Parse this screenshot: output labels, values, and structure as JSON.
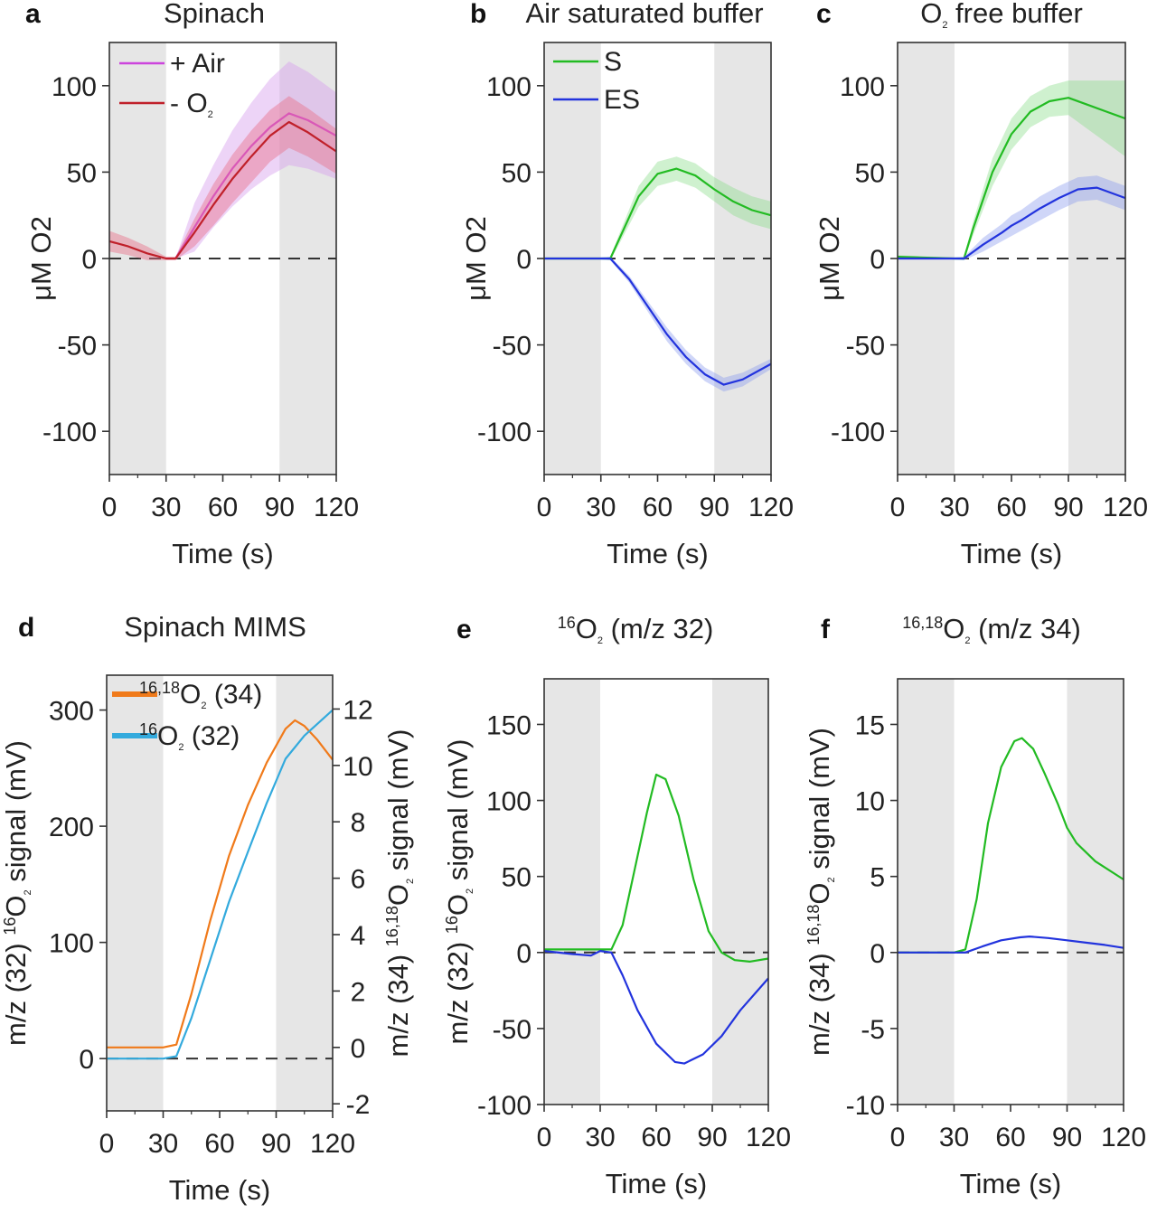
{
  "chart_data": [
    {
      "panel": "a",
      "title": "Spinach",
      "type": "line",
      "xlabel": "Time (s)",
      "xlim": [
        0,
        120
      ],
      "ylim": [
        -125,
        125
      ],
      "xticks": [
        "0",
        "30",
        "60",
        "90",
        "120"
      ],
      "yticks": [
        "-100",
        "-50",
        "0",
        "50",
        "100"
      ],
      "ylabel": "μM O2",
      "shaded_regions": [
        [
          0,
          30
        ],
        [
          90,
          120
        ]
      ],
      "zero_line": true,
      "legend": [
        {
          "label_pre": "+ Air",
          "sup": "",
          "label_main": "",
          "sub": "",
          "label_post": "",
          "color": "#cc44dd"
        },
        {
          "label_pre": "- O",
          "sup": "",
          "label_main": "",
          "sub": "2",
          "label_post": "",
          "color": "#c0202a"
        }
      ],
      "series": [
        {
          "name": "+ Air",
          "color": "#cc44dd",
          "band_color": "#d8a0ee",
          "band_opacity": 0.45,
          "x": [
            0,
            30,
            35,
            45,
            55,
            65,
            75,
            85,
            95,
            105,
            120
          ],
          "y": [
            null,
            0,
            0,
            18,
            36,
            52,
            65,
            76,
            84,
            80,
            71
          ],
          "err": [
            0,
            0,
            0,
            14,
            18,
            22,
            25,
            28,
            30,
            28,
            25
          ]
        },
        {
          "name": "- O2",
          "color": "#c0202a",
          "band_color": "#e8708a",
          "band_opacity": 0.45,
          "x": [
            0,
            10,
            20,
            30,
            35,
            45,
            55,
            65,
            75,
            85,
            95,
            105,
            120
          ],
          "y": [
            10,
            7,
            3,
            0,
            0,
            15,
            31,
            46,
            59,
            71,
            79,
            73,
            62
          ],
          "err": [
            6,
            5,
            4,
            1,
            1,
            8,
            12,
            14,
            15,
            15,
            15,
            14,
            13
          ]
        }
      ]
    },
    {
      "panel": "b",
      "title": "Air saturated buffer",
      "type": "line",
      "xlabel": "Time (s)",
      "xlim": [
        0,
        120
      ],
      "ylim": [
        -125,
        125
      ],
      "xticks": [
        "0",
        "30",
        "60",
        "90",
        "120"
      ],
      "yticks": [
        "-100",
        "-50",
        "0",
        "50",
        "100"
      ],
      "ylabel": "μM O2",
      "shaded_regions": [
        [
          0,
          30
        ],
        [
          90,
          120
        ]
      ],
      "zero_line": true,
      "legend": [
        {
          "label_pre": "S",
          "sup": "",
          "label_main": "",
          "sub": "",
          "label_post": "",
          "color": "#22bb22"
        },
        {
          "label_pre": "ES",
          "sup": "",
          "label_main": "",
          "sub": "",
          "label_post": "",
          "color": "#2233dd"
        }
      ],
      "series": [
        {
          "name": "S",
          "color": "#22bb22",
          "band_color": "#88dd88",
          "band_opacity": 0.4,
          "x": [
            0,
            30,
            35,
            40,
            50,
            60,
            70,
            80,
            90,
            100,
            110,
            120
          ],
          "y": [
            0,
            0,
            0,
            12,
            36,
            49,
            52,
            48,
            40,
            33,
            28,
            25
          ],
          "err": [
            0.5,
            0.5,
            1,
            3,
            6,
            7,
            7,
            7,
            7,
            8,
            8,
            8
          ]
        },
        {
          "name": "ES",
          "color": "#2233dd",
          "band_color": "#8899ee",
          "band_opacity": 0.4,
          "x": [
            0,
            30,
            35,
            45,
            55,
            65,
            75,
            85,
            95,
            105,
            120
          ],
          "y": [
            0,
            0,
            0,
            -12,
            -28,
            -44,
            -57,
            -67,
            -73,
            -70,
            -61
          ],
          "err": [
            0.5,
            0.5,
            1,
            2,
            3,
            4,
            4,
            4,
            4,
            4,
            3
          ]
        }
      ]
    },
    {
      "panel": "c",
      "title": "O2 free buffer",
      "type": "line",
      "xlabel": "Time (s)",
      "xlim": [
        0,
        120
      ],
      "ylim": [
        -125,
        125
      ],
      "xticks": [
        "0",
        "30",
        "60",
        "90",
        "120"
      ],
      "yticks": [
        "-100",
        "-50",
        "0",
        "50",
        "100"
      ],
      "ylabel": "μM O2",
      "shaded_regions": [
        [
          0,
          30
        ],
        [
          90,
          120
        ]
      ],
      "zero_line": true,
      "legend": [],
      "series": [
        {
          "name": "S",
          "color": "#22bb22",
          "band_color": "#88dd88",
          "band_opacity": 0.4,
          "x": [
            0,
            30,
            35,
            40,
            50,
            60,
            70,
            80,
            90,
            100,
            110,
            120
          ],
          "y": [
            1,
            0,
            0,
            18,
            50,
            72,
            85,
            91,
            93,
            89,
            85,
            81
          ],
          "err": [
            1,
            0.5,
            1,
            4,
            8,
            9,
            9,
            9,
            10,
            14,
            18,
            22
          ]
        },
        {
          "name": "ES",
          "color": "#2233dd",
          "band_color": "#8899ee",
          "band_opacity": 0.4,
          "x": [
            0,
            30,
            35,
            45,
            55,
            60,
            65,
            75,
            85,
            95,
            105,
            120
          ],
          "y": [
            0,
            0,
            0,
            8,
            15,
            19,
            22,
            29,
            35,
            40,
            41,
            35
          ],
          "err": [
            0.5,
            0.5,
            1,
            4,
            5,
            6,
            6,
            7,
            7,
            7,
            7,
            7
          ]
        }
      ]
    },
    {
      "panel": "d",
      "title": "Spinach MIMS",
      "type": "line",
      "xlabel": "Time (s)",
      "xlim": [
        0,
        120
      ],
      "ylim": [
        -45,
        330
      ],
      "xticks": [
        "0",
        "30",
        "60",
        "90",
        "120"
      ],
      "yticks": [
        "0",
        "100",
        "200",
        "300"
      ],
      "ylabel_pre": "m/z (32) ",
      "ylabel_sup": "16",
      "ylabel_main": "O",
      "ylabel_sub": "2",
      "ylabel_post": " signal (mV)",
      "y2lim": [
        -2.25,
        13.2
      ],
      "y2ticks": [
        "-2",
        "0",
        "2",
        "4",
        "6",
        "8",
        "10",
        "12"
      ],
      "y2label_pre": "m/z (34) ",
      "y2label_sup": "16,18",
      "y2label_main": "O",
      "y2label_sub": "2",
      "y2label_post": " signal (mV)",
      "shaded_regions": [
        [
          0,
          30
        ],
        [
          90,
          120
        ]
      ],
      "zero_line": true,
      "legend": [
        {
          "label_pre": "",
          "sup": "16,18",
          "label_main": "O",
          "sub": "2",
          "label_post": " (34)",
          "color": "#f07a1a"
        },
        {
          "label_pre": "",
          "sup": "16",
          "label_main": "O",
          "sub": "2",
          "label_post": " (32)",
          "color": "#33aadd"
        }
      ],
      "series": [
        {
          "name": "16,18O2 (34)",
          "color": "#f07a1a",
          "axis": "right",
          "x": [
            0,
            30,
            37,
            45,
            55,
            65,
            75,
            85,
            95,
            100,
            105,
            112,
            120
          ],
          "y": [
            0,
            0,
            0.1,
            1.9,
            4.5,
            6.8,
            8.6,
            10.1,
            11.3,
            11.6,
            11.4,
            10.9,
            10.2
          ]
        },
        {
          "name": "16O2 (32)",
          "color": "#33aadd",
          "axis": "left",
          "x": [
            0,
            30,
            37,
            45,
            55,
            65,
            75,
            85,
            95,
            105,
            120
          ],
          "y": [
            0,
            0,
            2,
            35,
            85,
            135,
            178,
            220,
            258,
            278,
            300
          ]
        }
      ]
    },
    {
      "panel": "e",
      "title_sup": "16",
      "title_main": "O",
      "title_sub": "2",
      "title_post": " (m/z 32)",
      "type": "line",
      "xlabel": "Time (s)",
      "xlim": [
        0,
        120
      ],
      "ylim": [
        -100,
        180
      ],
      "xticks": [
        "0",
        "30",
        "60",
        "90",
        "120"
      ],
      "yticks": [
        "-100",
        "-50",
        "0",
        "50",
        "100",
        "150"
      ],
      "ylabel_pre": "m/z (32) ",
      "ylabel_sup": "16",
      "ylabel_main": "O",
      "ylabel_sub": "2",
      "ylabel_post": " signal (mV)",
      "shaded_regions": [
        [
          0,
          30
        ],
        [
          90,
          120
        ]
      ],
      "zero_line": true,
      "legend": [],
      "series": [
        {
          "name": "S",
          "color": "#22bb22",
          "x": [
            0,
            30,
            36,
            42,
            48,
            55,
            60,
            65,
            72,
            80,
            88,
            95,
            102,
            110,
            120
          ],
          "y": [
            2,
            2,
            2,
            18,
            52,
            92,
            117,
            114,
            90,
            48,
            14,
            0,
            -5,
            -6,
            -4
          ]
        },
        {
          "name": "ES",
          "color": "#2233dd",
          "x": [
            0,
            15,
            25,
            30,
            36,
            42,
            50,
            60,
            70,
            75,
            85,
            95,
            105,
            120
          ],
          "y": [
            1,
            -1,
            -2,
            1,
            0,
            -15,
            -38,
            -60,
            -72,
            -73,
            -67,
            -55,
            -38,
            -17
          ]
        }
      ]
    },
    {
      "panel": "f",
      "title_sup": "16,18",
      "title_main": "O",
      "title_sub": "2",
      "title_post": " (m/z 34)",
      "type": "line",
      "xlabel": "Time (s)",
      "xlim": [
        0,
        120
      ],
      "ylim": [
        -10,
        18
      ],
      "xticks": [
        "0",
        "30",
        "60",
        "90",
        "120"
      ],
      "yticks": [
        "-10",
        "-5",
        "0",
        "5",
        "10",
        "15"
      ],
      "ylabel_pre": "m/z (34) ",
      "ylabel_sup": "16,18",
      "ylabel_main": "O",
      "ylabel_sub": "2",
      "ylabel_post": " signal (mV)",
      "shaded_regions": [
        [
          0,
          30
        ],
        [
          90,
          120
        ]
      ],
      "zero_line": true,
      "legend": [],
      "series": [
        {
          "name": "S",
          "color": "#22bb22",
          "x": [
            0,
            30,
            36,
            42,
            48,
            55,
            62,
            66,
            72,
            78,
            85,
            90,
            95,
            105,
            120
          ],
          "y": [
            0,
            0,
            0.2,
            3.5,
            8.5,
            12.2,
            13.9,
            14.1,
            13.4,
            11.8,
            9.8,
            8.2,
            7.2,
            6,
            4.8
          ]
        },
        {
          "name": "ES",
          "color": "#2233dd",
          "x": [
            0,
            30,
            36,
            45,
            55,
            65,
            70,
            80,
            90,
            100,
            110,
            120
          ],
          "y": [
            0,
            0,
            0,
            0.4,
            0.8,
            1,
            1.05,
            0.95,
            0.8,
            0.65,
            0.5,
            0.3
          ]
        }
      ]
    }
  ]
}
